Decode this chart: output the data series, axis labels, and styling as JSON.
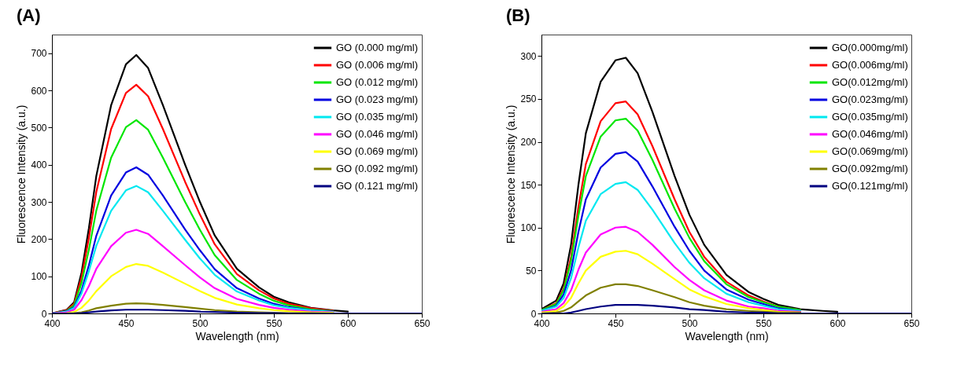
{
  "chart_data": [
    {
      "type": "line",
      "title": "(A)",
      "xlabel": "Wavelength (nm)",
      "ylabel": "Fluorescence Intensity (a.u.)",
      "x": [
        400,
        410,
        415,
        420,
        425,
        430,
        440,
        450,
        457,
        465,
        475,
        490,
        500,
        510,
        525,
        540,
        550,
        560,
        575,
        590,
        600,
        625,
        650
      ],
      "xlim": [
        400,
        650
      ],
      "xticks": [
        400,
        450,
        500,
        550,
        600,
        650
      ],
      "ylim": [
        0,
        750
      ],
      "yticks": [
        0,
        100,
        200,
        300,
        400,
        500,
        600,
        700
      ],
      "legend": "top right",
      "grid": false,
      "line_style": "solid",
      "series": [
        {
          "name": "GO (0.000 mg/ml)",
          "color": "#000000",
          "values": [
            0,
            10,
            30,
            110,
            230,
            370,
            560,
            670,
            695,
            660,
            560,
            400,
            300,
            210,
            120,
            70,
            45,
            30,
            15,
            8,
            5,
            null,
            null
          ]
        },
        {
          "name": "GO (0.006 mg/ml)",
          "color": "#ff0000",
          "values": [
            0,
            9,
            26,
            97,
            204,
            327,
            496,
            593,
            615,
            584,
            496,
            354,
            266,
            186,
            106,
            62,
            40,
            26,
            14,
            7,
            null,
            null,
            null
          ]
        },
        {
          "name": "GO (0.012 mg/ml)",
          "color": "#00e600",
          "values": [
            0,
            7,
            22,
            82,
            172,
            277,
            419,
            501,
            520,
            494,
            419,
            300,
            225,
            157,
            90,
            53,
            34,
            22,
            11,
            6,
            null,
            null,
            null
          ]
        },
        {
          "name": "GO (0.023 mg/ml)",
          "color": "#0000e0",
          "values": [
            0,
            6,
            17,
            62,
            130,
            209,
            317,
            379,
            393,
            373,
            317,
            226,
            170,
            119,
            68,
            40,
            26,
            17,
            9,
            5,
            null,
            null,
            null
          ]
        },
        {
          "name": "GO (0.035 mg/ml)",
          "color": "#00e8f0",
          "values": [
            0,
            5,
            15,
            54,
            114,
            182,
            276,
            331,
            343,
            326,
            276,
            198,
            148,
            104,
            59,
            35,
            22,
            15,
            8,
            4,
            null,
            null,
            null
          ]
        },
        {
          "name": "GO (0.046 mg/ml)",
          "color": "#ff00ff",
          "values": [
            0,
            3,
            10,
            36,
            74,
            120,
            181,
            217,
            225,
            214,
            181,
            130,
            97,
            68,
            39,
            23,
            15,
            10,
            5,
            3,
            null,
            null,
            null
          ]
        },
        {
          "name": "GO (0.069 mg/ml)",
          "color": "#ffff00",
          "values": [
            0,
            1,
            4,
            15,
            35,
            60,
            100,
            125,
            133,
            128,
            110,
            80,
            60,
            42,
            24,
            14,
            9,
            6,
            3,
            2,
            null,
            null,
            null
          ]
        },
        {
          "name": "GO (0.092 mg/ml)",
          "color": "#808000",
          "values": [
            0,
            0,
            1,
            3,
            8,
            14,
            21,
            26,
            27,
            26,
            23,
            17,
            13,
            9,
            5,
            3,
            2,
            1,
            1,
            0,
            null,
            null,
            null
          ]
        },
        {
          "name": "GO (0.121 mg/ml)",
          "color": "#000080",
          "values": [
            0,
            0,
            0,
            1,
            3,
            5,
            8,
            10,
            10,
            10,
            9,
            7,
            5,
            4,
            2,
            1,
            1,
            0,
            0,
            0,
            0,
            0,
            0
          ]
        }
      ]
    },
    {
      "type": "line",
      "title": "(B)",
      "xlabel": "Wavelength (nm)",
      "ylabel": "Fluorescence Intensity (a.u.)",
      "x": [
        400,
        410,
        415,
        420,
        425,
        430,
        440,
        450,
        457,
        465,
        475,
        490,
        500,
        510,
        525,
        540,
        550,
        560,
        575,
        590,
        600,
        625,
        650
      ],
      "xlim": [
        400,
        650
      ],
      "xticks": [
        400,
        450,
        500,
        550,
        600,
        650
      ],
      "ylim": [
        0,
        325
      ],
      "yticks": [
        0,
        50,
        100,
        150,
        200,
        250,
        300
      ],
      "legend": "top right",
      "grid": false,
      "line_style": "solid",
      "series": [
        {
          "name": "GO(0.000mg/ml)",
          "color": "#000000",
          "values": [
            5,
            15,
            35,
            80,
            150,
            210,
            270,
            295,
            298,
            280,
            235,
            160,
            115,
            80,
            45,
            25,
            17,
            10,
            5,
            3,
            2,
            null,
            null
          ]
        },
        {
          "name": "GO(0.006mg/ml)",
          "color": "#ff0000",
          "values": [
            4,
            12,
            29,
            66,
            124,
            174,
            224,
            245,
            247,
            232,
            195,
            133,
            95,
            66,
            37,
            21,
            14,
            8,
            4,
            null,
            null,
            null,
            null
          ]
        },
        {
          "name": "GO(0.012mg/ml)",
          "color": "#00e600",
          "values": [
            4,
            11,
            27,
            61,
            114,
            160,
            206,
            225,
            227,
            213,
            179,
            122,
            88,
            61,
            34,
            19,
            13,
            8,
            4,
            null,
            null,
            null,
            null
          ]
        },
        {
          "name": "GO(0.023mg/ml)",
          "color": "#0000e0",
          "values": [
            3,
            9,
            22,
            50,
            95,
            133,
            170,
            186,
            188,
            177,
            148,
            101,
            73,
            50,
            28,
            16,
            11,
            6,
            3,
            null,
            null,
            null,
            null
          ]
        },
        {
          "name": "GO(0.035mg/ml)",
          "color": "#00e8f0",
          "values": [
            3,
            8,
            18,
            41,
            77,
            108,
            139,
            151,
            153,
            144,
            121,
            82,
            59,
            41,
            23,
            13,
            9,
            5,
            3,
            null,
            null,
            null,
            null
          ]
        },
        {
          "name": "GO(0.046mg/ml)",
          "color": "#ff00ff",
          "values": [
            2,
            5,
            12,
            27,
            51,
            71,
            92,
            100,
            101,
            95,
            80,
            54,
            39,
            27,
            15,
            8,
            6,
            3,
            2,
            null,
            null,
            null,
            null
          ]
        },
        {
          "name": "GO(0.069mg/ml)",
          "color": "#ffff00",
          "values": [
            1,
            3,
            8,
            18,
            35,
            50,
            66,
            72,
            73,
            69,
            58,
            40,
            28,
            20,
            11,
            6,
            4,
            2,
            1,
            null,
            null,
            null,
            null
          ]
        },
        {
          "name": "GO(0.092mg/ml)",
          "color": "#808000",
          "values": [
            0,
            1,
            3,
            7,
            14,
            21,
            30,
            34,
            34,
            32,
            27,
            19,
            13,
            9,
            5,
            3,
            2,
            1,
            1,
            null,
            null,
            null,
            null
          ]
        },
        {
          "name": "GO(0.121mg/ml)",
          "color": "#000080",
          "values": [
            0,
            0,
            0,
            1,
            3,
            5,
            8,
            10,
            10,
            10,
            9,
            7,
            5,
            4,
            2,
            1,
            1,
            0,
            0,
            0,
            0,
            0,
            0
          ]
        }
      ]
    }
  ]
}
